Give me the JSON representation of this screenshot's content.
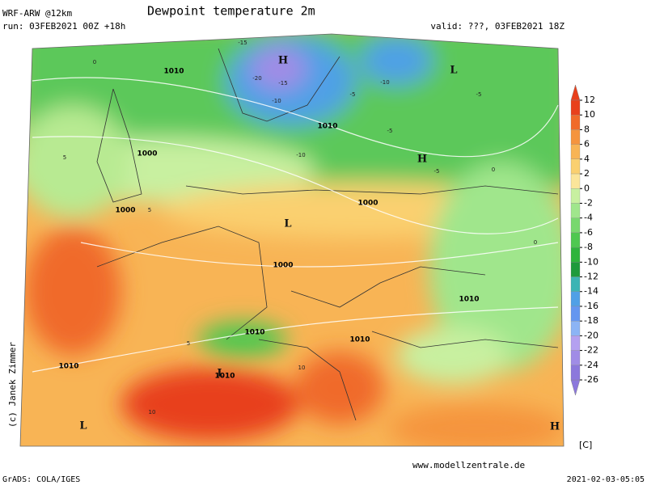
{
  "header": {
    "model": "WRF-ARW @12km",
    "title": "Dewpoint temperature 2m",
    "run": "run: 03FEB2021 00Z +18h",
    "valid": "valid: ???, 03FEB2021 18Z"
  },
  "map": {
    "pressure_labels": [
      "1010",
      "1010",
      "1000",
      "1000",
      "1000",
      "1000",
      "1010",
      "1010",
      "1010",
      "1010",
      "1010"
    ],
    "centers": [
      "H",
      "L",
      "H",
      "L",
      "L",
      "L",
      "H"
    ],
    "contour_labels": [
      "-15",
      "-20",
      "-15",
      "-10",
      "-10",
      "-5",
      "-10",
      "-5",
      "-5",
      "0",
      "0",
      "5",
      "5",
      "5",
      "10",
      "10",
      "-5",
      "0"
    ]
  },
  "colorbar": {
    "ticks": [
      12,
      10,
      8,
      6,
      4,
      2,
      0,
      -2,
      -4,
      -6,
      -8,
      -10,
      -12,
      -14,
      -16,
      -18,
      -20,
      -22,
      -24,
      -26
    ],
    "colors": [
      "#e8401c",
      "#f06a2a",
      "#f5943e",
      "#f8b455",
      "#fad070",
      "#fbe59a",
      "#c8f0a0",
      "#a0e68c",
      "#78d86e",
      "#4ec850",
      "#2eb43c",
      "#1e9a3c",
      "#3cb4b4",
      "#50a0e6",
      "#6496f0",
      "#8cb4f5",
      "#b4a0f0",
      "#a08ce6",
      "#8c78dc"
    ],
    "unit": "[C]"
  },
  "credit": "(c) Janek Zimmer",
  "website": "www.modellzentrale.de",
  "footer": {
    "left": "GrADS: COLA/IGES",
    "right": "2021-02-03-05:05"
  }
}
